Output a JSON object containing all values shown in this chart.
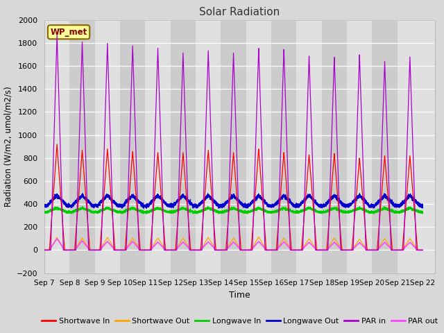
{
  "title": "Solar Radiation",
  "xlabel": "Time",
  "ylabel": "Radiation (W/m2, umol/m2/s)",
  "ylim": [
    -200,
    2000
  ],
  "xlim": [
    0,
    15.5
  ],
  "x_tick_labels": [
    "Sep 7",
    "Sep 8",
    "Sep 9",
    "Sep 10",
    "Sep 11",
    "Sep 12",
    "Sep 13",
    "Sep 14",
    "Sep 15",
    "Sep 16",
    "Sep 17",
    "Sep 18",
    "Sep 19",
    "Sep 20",
    "Sep 21",
    "Sep 22"
  ],
  "x_tick_positions": [
    0,
    1,
    2,
    3,
    4,
    5,
    6,
    7,
    8,
    9,
    10,
    11,
    12,
    13,
    14,
    15
  ],
  "fig_facecolor": "#d8d8d8",
  "plot_facecolor": "#e0e0e0",
  "alt_band_color": "#cccccc",
  "grid_color": "#ffffff",
  "label_box_text": "WP_met",
  "label_box_facecolor": "#ffff99",
  "label_box_edgecolor": "#886600",
  "series": {
    "shortwave_in": {
      "color": "#ff0000",
      "label": "Shortwave In"
    },
    "shortwave_out": {
      "color": "#ffa500",
      "label": "Shortwave Out"
    },
    "longwave_in": {
      "color": "#00cc00",
      "label": "Longwave In"
    },
    "longwave_out": {
      "color": "#0000cc",
      "label": "Longwave Out"
    },
    "par_in": {
      "color": "#aa00cc",
      "label": "PAR in"
    },
    "par_out": {
      "color": "#ff44ff",
      "label": "PAR out"
    }
  },
  "n_days": 15,
  "day_peaks": {
    "shortwave_in": [
      920,
      870,
      880,
      860,
      850,
      850,
      870,
      850,
      880,
      850,
      830,
      840,
      800,
      820,
      820
    ],
    "shortwave_out": [
      110,
      105,
      110,
      105,
      105,
      105,
      110,
      105,
      115,
      105,
      100,
      105,
      95,
      100,
      100
    ],
    "longwave_in_base": 330,
    "longwave_in_amplitude": 35,
    "longwave_out_base": 385,
    "longwave_out_amplitude": 90,
    "par_in": [
      1870,
      1810,
      1800,
      1780,
      1760,
      1720,
      1740,
      1720,
      1760,
      1750,
      1690,
      1680,
      1700,
      1640,
      1680
    ],
    "par_out": [
      100,
      80,
      75,
      75,
      70,
      70,
      72,
      70,
      75,
      72,
      68,
      68,
      65,
      68,
      68
    ]
  }
}
